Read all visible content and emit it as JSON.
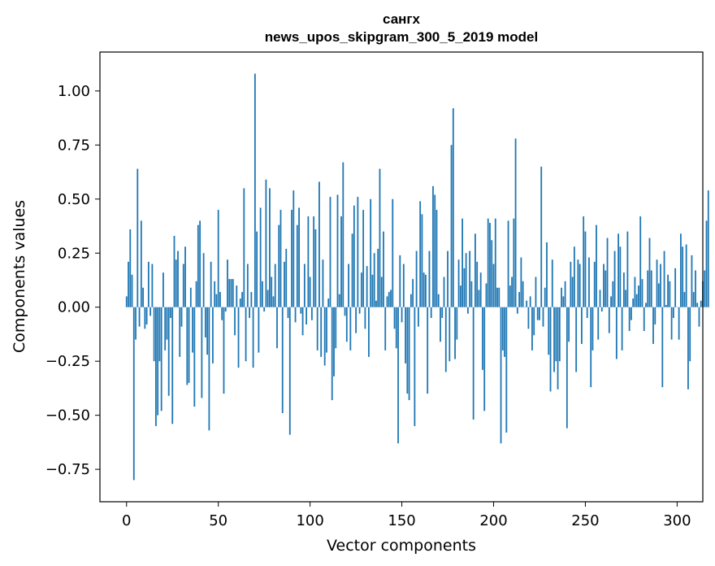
{
  "chart_data": {
    "type": "bar",
    "title_lines": [
      "сангх",
      "news_upos_skipgram_300_5_2019 model"
    ],
    "xlabel": "Vector components",
    "ylabel": "Components values",
    "xlim": [
      -14.5,
      314
    ],
    "ylim": [
      -0.9,
      1.18
    ],
    "xticks": [
      0,
      50,
      100,
      150,
      200,
      250,
      300
    ],
    "xtick_labels": [
      "0",
      "50",
      "100",
      "150",
      "200",
      "250",
      "300"
    ],
    "yticks": [
      -0.75,
      -0.5,
      -0.25,
      0.0,
      0.25,
      0.5,
      0.75,
      1.0
    ],
    "ytick_labels": [
      "−0.75",
      "−0.50",
      "−0.25",
      "0.00",
      "0.25",
      "0.50",
      "0.75",
      "1.00"
    ],
    "bar_color": "#1f77b4",
    "series": [
      {
        "name": "components",
        "values": [
          0.05,
          0.21,
          0.36,
          0.15,
          -0.8,
          -0.15,
          0.64,
          -0.09,
          0.4,
          0.09,
          -0.1,
          -0.08,
          0.21,
          -0.04,
          0.2,
          -0.25,
          -0.55,
          -0.5,
          -0.25,
          -0.48,
          0.16,
          -0.2,
          -0.15,
          -0.41,
          -0.05,
          -0.54,
          0.33,
          0.22,
          0.26,
          -0.23,
          -0.09,
          0.2,
          0.28,
          -0.36,
          -0.35,
          0.09,
          -0.21,
          -0.46,
          0.12,
          0.38,
          0.4,
          -0.42,
          0.25,
          -0.14,
          -0.22,
          -0.57,
          0.21,
          -0.26,
          0.12,
          0.06,
          0.45,
          0.07,
          -0.06,
          -0.4,
          -0.02,
          0.22,
          0.13,
          0.13,
          0.13,
          -0.13,
          0.1,
          -0.28,
          0.04,
          0.07,
          0.55,
          -0.25,
          0.2,
          -0.05,
          0.07,
          -0.28,
          1.08,
          0.35,
          -0.21,
          0.46,
          0.12,
          -0.02,
          0.59,
          0.08,
          0.55,
          0.14,
          0.05,
          0.2,
          -0.19,
          0.38,
          0.45,
          -0.49,
          0.21,
          0.27,
          -0.05,
          -0.59,
          0.45,
          0.54,
          -0.07,
          0.38,
          0.46,
          -0.03,
          -0.13,
          0.2,
          -0.08,
          0.42,
          0.14,
          -0.06,
          0.42,
          0.36,
          -0.2,
          0.58,
          -0.23,
          0.22,
          -0.27,
          -0.21,
          0.04,
          0.51,
          -0.43,
          -0.32,
          -0.19,
          0.52,
          0.06,
          0.42,
          0.67,
          -0.04,
          -0.16,
          0.2,
          -0.2,
          0.34,
          0.47,
          -0.12,
          0.51,
          -0.03,
          0.16,
          0.45,
          -0.1,
          0.19,
          -0.23,
          0.5,
          0.15,
          0.25,
          0.03,
          0.27,
          0.64,
          0.14,
          0.35,
          -0.2,
          0.05,
          0.07,
          0.08,
          0.5,
          -0.1,
          -0.19,
          -0.63,
          0.24,
          -0.07,
          0.2,
          -0.26,
          -0.4,
          -0.43,
          0.06,
          0.13,
          -0.55,
          0.26,
          -0.09,
          0.49,
          0.43,
          0.16,
          0.15,
          -0.4,
          0.26,
          -0.05,
          0.56,
          0.52,
          0.45,
          0.06,
          -0.16,
          -0.05,
          0.14,
          -0.3,
          0.26,
          -0.25,
          0.75,
          0.92,
          -0.24,
          -0.15,
          0.22,
          0.1,
          0.41,
          0.18,
          0.25,
          -0.03,
          0.26,
          0.12,
          -0.52,
          0.34,
          0.21,
          0.08,
          0.16,
          -0.29,
          -0.48,
          0.11,
          0.41,
          0.39,
          0.31,
          0.2,
          0.41,
          0.09,
          0.09,
          -0.63,
          -0.2,
          -0.23,
          -0.58,
          0.4,
          0.1,
          0.14,
          0.41,
          0.78,
          -0.03,
          0.07,
          0.23,
          0.12,
          0.0,
          0.03,
          -0.1,
          0.05,
          -0.2,
          -0.13,
          0.14,
          -0.06,
          -0.06,
          0.65,
          -0.09,
          0.09,
          0.3,
          -0.22,
          -0.39,
          0.22,
          -0.3,
          -0.25,
          -0.38,
          -0.25,
          0.09,
          0.05,
          0.12,
          -0.56,
          -0.16,
          0.21,
          0.14,
          0.28,
          -0.3,
          0.22,
          0.2,
          -0.17,
          0.42,
          0.35,
          -0.05,
          0.23,
          -0.37,
          -0.2,
          0.21,
          0.38,
          -0.15,
          0.08,
          -0.02,
          0.2,
          0.17,
          0.32,
          -0.12,
          0.05,
          0.12,
          0.26,
          -0.24,
          0.34,
          0.28,
          -0.2,
          0.16,
          0.08,
          0.35,
          -0.11,
          -0.06,
          0.04,
          0.14,
          0.06,
          0.1,
          0.42,
          0.13,
          -0.11,
          0.02,
          0.17,
          0.32,
          0.17,
          -0.17,
          -0.08,
          0.22,
          0.11,
          0.2,
          -0.37,
          0.26,
          0.01,
          0.15,
          0.12,
          -0.15,
          -0.05,
          0.18,
          0.0,
          -0.15,
          0.34,
          0.28,
          0.07,
          0.29,
          -0.38,
          -0.25,
          0.24,
          0.07,
          0.17,
          0.02,
          -0.09,
          0.03,
          0.12,
          0.17,
          0.4,
          0.54
        ]
      }
    ]
  }
}
